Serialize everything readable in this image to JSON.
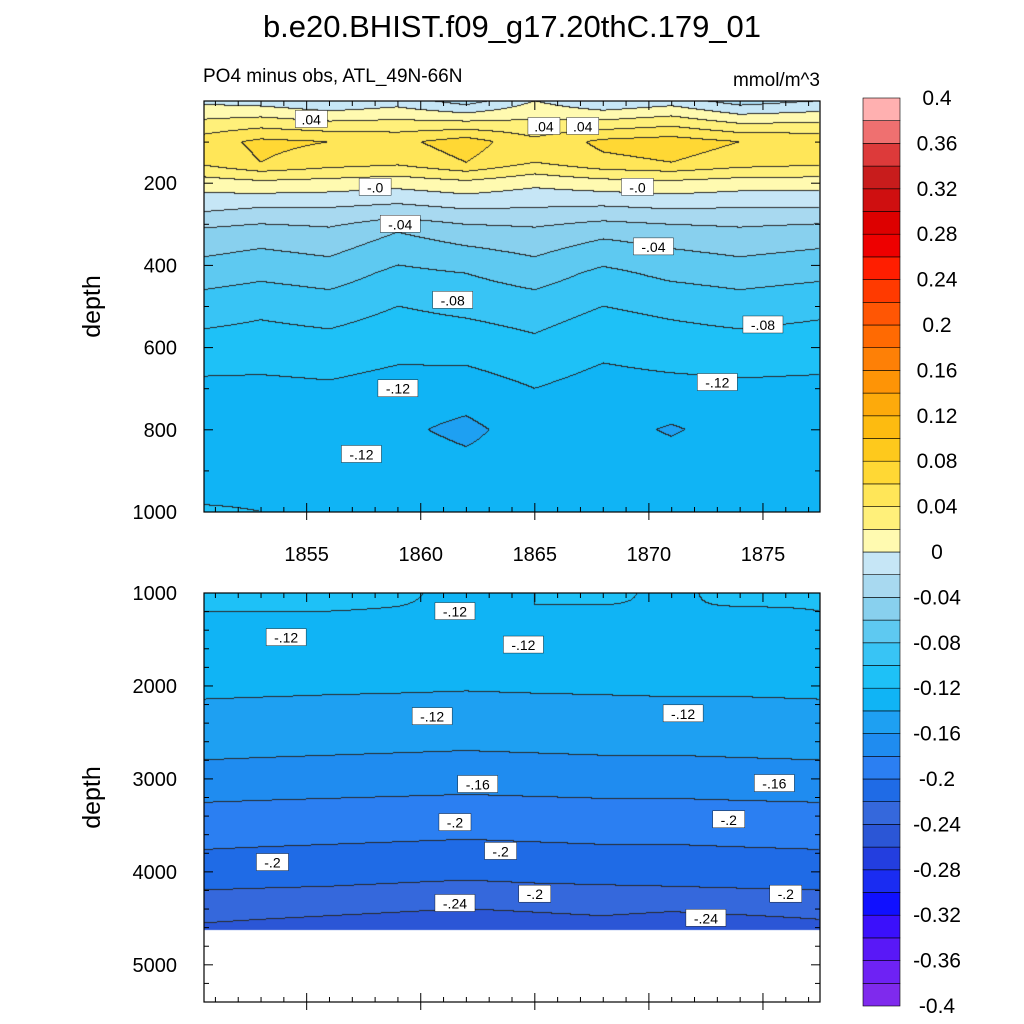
{
  "chart_data": {
    "type": "heatmap",
    "title": "b.e20.BHIST.f09_g17.20thC.179_01",
    "units": "mmol/m^3",
    "colorbar": {
      "levels": [
        -0.4,
        -0.38,
        -0.36,
        -0.34,
        -0.32,
        -0.3,
        -0.28,
        -0.26,
        -0.24,
        -0.22,
        -0.2,
        -0.18,
        -0.16,
        -0.14,
        -0.12,
        -0.1,
        -0.08,
        -0.06,
        -0.04,
        -0.02,
        0,
        0.02,
        0.04,
        0.06,
        0.08,
        0.1,
        0.12,
        0.14,
        0.16,
        0.18,
        0.2,
        0.22,
        0.24,
        0.26,
        0.28,
        0.3,
        0.32,
        0.34,
        0.36,
        0.38,
        0.4
      ],
      "tick_labels": [
        "0.4",
        "0.36",
        "0.32",
        "0.28",
        "0.24",
        "0.2",
        "0.16",
        "0.12",
        "0.08",
        "0.04",
        "0",
        "-0.04",
        "-0.08",
        "-0.12",
        "-0.16",
        "-0.2",
        "-0.24",
        "-0.28",
        "-0.32",
        "-0.36",
        "-0.4"
      ],
      "tick_values": [
        0.4,
        0.36,
        0.32,
        0.28,
        0.24,
        0.2,
        0.16,
        0.12,
        0.08,
        0.04,
        0,
        -0.04,
        -0.08,
        -0.12,
        -0.16,
        -0.2,
        -0.24,
        -0.28,
        -0.32,
        -0.36,
        -0.4
      ]
    },
    "panels": [
      {
        "name": "upper",
        "subtitle": "PO4 minus obs, ATL_49N-66N",
        "units_label": "mmol/m^3",
        "ylabel": "depth",
        "xlim": [
          1850.5,
          1877.5
        ],
        "ylim": [
          1000,
          0
        ],
        "ytick_labels": [
          "200",
          "400",
          "600",
          "800",
          "1000"
        ],
        "ytick_values": [
          200,
          400,
          600,
          800,
          1000
        ],
        "xtick_labels": [
          "1855",
          "1860",
          "1865",
          "1870",
          "1875"
        ],
        "xtick_values": [
          1855,
          1860,
          1865,
          1870,
          1875
        ],
        "x": [
          1850.5,
          1853,
          1856,
          1859,
          1862,
          1865,
          1868,
          1871,
          1874,
          1877.5
        ],
        "y": [
          0,
          100,
          150,
          200,
          260,
          320,
          420,
          500,
          600,
          700,
          800,
          900,
          1000
        ],
        "z": [
          [
            -0.005,
            -0.01,
            -0.02,
            -0.01,
            -0.03,
            0.0,
            -0.02,
            -0.01,
            -0.03,
            -0.02
          ],
          [
            0.05,
            0.065,
            0.06,
            0.055,
            0.07,
            0.045,
            0.065,
            0.07,
            0.06,
            0.055
          ],
          [
            0.045,
            0.06,
            0.05,
            0.045,
            0.06,
            0.04,
            0.055,
            0.06,
            0.05,
            0.045
          ],
          [
            0.01,
            0.015,
            0.012,
            0.008,
            0.015,
            0.005,
            0.012,
            0.015,
            0.01,
            0.01
          ],
          [
            -0.015,
            -0.02,
            -0.02,
            -0.025,
            -0.018,
            -0.02,
            -0.022,
            -0.018,
            -0.02,
            -0.02
          ],
          [
            -0.045,
            -0.05,
            -0.045,
            -0.06,
            -0.05,
            -0.045,
            -0.055,
            -0.05,
            -0.045,
            -0.05
          ],
          [
            -0.07,
            -0.075,
            -0.07,
            -0.085,
            -0.08,
            -0.07,
            -0.085,
            -0.075,
            -0.07,
            -0.075
          ],
          [
            -0.09,
            -0.095,
            -0.09,
            -0.1,
            -0.095,
            -0.09,
            -0.1,
            -0.095,
            -0.09,
            -0.095
          ],
          [
            -0.108,
            -0.11,
            -0.108,
            -0.114,
            -0.112,
            -0.105,
            -0.115,
            -0.11,
            -0.108,
            -0.11
          ],
          [
            -0.125,
            -0.125,
            -0.123,
            -0.128,
            -0.13,
            -0.12,
            -0.128,
            -0.126,
            -0.124,
            -0.125
          ],
          [
            -0.135,
            -0.128,
            -0.13,
            -0.136,
            -0.145,
            -0.13,
            -0.133,
            -0.142,
            -0.132,
            -0.13
          ],
          [
            -0.13,
            -0.126,
            -0.125,
            -0.128,
            -0.133,
            -0.13,
            -0.128,
            -0.13,
            -0.127,
            -0.128
          ],
          [
            -0.118,
            -0.12,
            -0.125,
            -0.13,
            -0.128,
            -0.13,
            -0.128,
            -0.127,
            -0.126,
            -0.122
          ]
        ],
        "contour_labels": [
          {
            "text": ".04",
            "x": 1855.2,
            "y": 45
          },
          {
            "text": ".04",
            "x": 1865.4,
            "y": 62
          },
          {
            "text": ".04",
            "x": 1867.1,
            "y": 62
          },
          {
            "text": "-.0",
            "x": 1858.0,
            "y": 210
          },
          {
            "text": "-.0",
            "x": 1869.5,
            "y": 210
          },
          {
            "text": "-.04",
            "x": 1859.1,
            "y": 300
          },
          {
            "text": "-.04",
            "x": 1870.2,
            "y": 355
          },
          {
            "text": "-.08",
            "x": 1861.4,
            "y": 485
          },
          {
            "text": "-.08",
            "x": 1875.0,
            "y": 545
          },
          {
            "text": "-.12",
            "x": 1859.0,
            "y": 700
          },
          {
            "text": "-.12",
            "x": 1873.0,
            "y": 685
          },
          {
            "text": "-.12",
            "x": 1857.4,
            "y": 860
          }
        ]
      },
      {
        "name": "lower",
        "ylabel": "depth",
        "xlim": [
          1850.5,
          1877.5
        ],
        "ylim": [
          5400,
          1000
        ],
        "ytick_labels": [
          "1000",
          "2000",
          "3000",
          "4000",
          "5000"
        ],
        "ytick_values": [
          1000,
          2000,
          3000,
          4000,
          5000
        ],
        "x": [
          1850.5,
          1853,
          1856,
          1859,
          1862,
          1865,
          1868,
          1871,
          1874,
          1877.5
        ],
        "y": [
          1000,
          1200,
          1500,
          1800,
          2200,
          2600,
          3000,
          3300,
          3600,
          3900,
          4200,
          4400,
          4630
        ],
        "z": [
          [
            -0.115,
            -0.118,
            -0.114,
            -0.117,
            -0.125,
            -0.12,
            -0.118,
            -0.122,
            -0.117,
            -0.119
          ],
          [
            -0.12,
            -0.12,
            -0.12,
            -0.121,
            -0.122,
            -0.12,
            -0.121,
            -0.12,
            -0.121,
            -0.12
          ],
          [
            -0.124,
            -0.123,
            -0.124,
            -0.125,
            -0.124,
            -0.123,
            -0.124,
            -0.123,
            -0.124,
            -0.123
          ],
          [
            -0.127,
            -0.127,
            -0.128,
            -0.128,
            -0.129,
            -0.128,
            -0.128,
            -0.128,
            -0.128,
            -0.127
          ],
          [
            -0.142,
            -0.143,
            -0.144,
            -0.145,
            -0.146,
            -0.145,
            -0.144,
            -0.143,
            -0.143,
            -0.142
          ],
          [
            -0.152,
            -0.153,
            -0.154,
            -0.155,
            -0.156,
            -0.155,
            -0.154,
            -0.154,
            -0.153,
            -0.152
          ],
          [
            -0.168,
            -0.169,
            -0.17,
            -0.171,
            -0.172,
            -0.171,
            -0.17,
            -0.17,
            -0.169,
            -0.168
          ],
          [
            -0.182,
            -0.183,
            -0.184,
            -0.185,
            -0.186,
            -0.185,
            -0.184,
            -0.184,
            -0.183,
            -0.182
          ],
          [
            -0.194,
            -0.195,
            -0.196,
            -0.197,
            -0.198,
            -0.197,
            -0.196,
            -0.196,
            -0.195,
            -0.194
          ],
          [
            -0.205,
            -0.206,
            -0.207,
            -0.208,
            -0.209,
            -0.208,
            -0.207,
            -0.207,
            -0.206,
            -0.205
          ],
          [
            -0.22,
            -0.221,
            -0.222,
            -0.224,
            -0.226,
            -0.224,
            -0.223,
            -0.222,
            -0.221,
            -0.22
          ],
          [
            -0.232,
            -0.234,
            -0.236,
            -0.238,
            -0.24,
            -0.238,
            -0.236,
            -0.238,
            -0.236,
            -0.234
          ],
          [
            -0.244,
            -0.246,
            -0.248,
            -0.25,
            -0.252,
            -0.25,
            -0.248,
            -0.252,
            -0.25,
            -0.246
          ]
        ],
        "missing_below_depth": 4630,
        "contour_labels": [
          {
            "text": "-.12",
            "x": 1861.5,
            "y": 1200
          },
          {
            "text": "-.12",
            "x": 1854.1,
            "y": 1480
          },
          {
            "text": "-.12",
            "x": 1864.5,
            "y": 1560
          },
          {
            "text": "-.12",
            "x": 1860.5,
            "y": 2330
          },
          {
            "text": "-.12",
            "x": 1871.5,
            "y": 2300
          },
          {
            "text": "-.16",
            "x": 1862.5,
            "y": 3060
          },
          {
            "text": "-.16",
            "x": 1875.5,
            "y": 3050
          },
          {
            "text": "-.2",
            "x": 1861.5,
            "y": 3470
          },
          {
            "text": "-.2",
            "x": 1873.5,
            "y": 3440
          },
          {
            "text": "-.2",
            "x": 1863.5,
            "y": 3780
          },
          {
            "text": "-.2",
            "x": 1853.5,
            "y": 3900
          },
          {
            "text": "-.2",
            "x": 1865.0,
            "y": 4240
          },
          {
            "text": "-.2",
            "x": 1876.0,
            "y": 4240
          },
          {
            "text": "-.24",
            "x": 1861.5,
            "y": 4340
          },
          {
            "text": "-.24",
            "x": 1872.5,
            "y": 4500
          }
        ]
      }
    ]
  }
}
